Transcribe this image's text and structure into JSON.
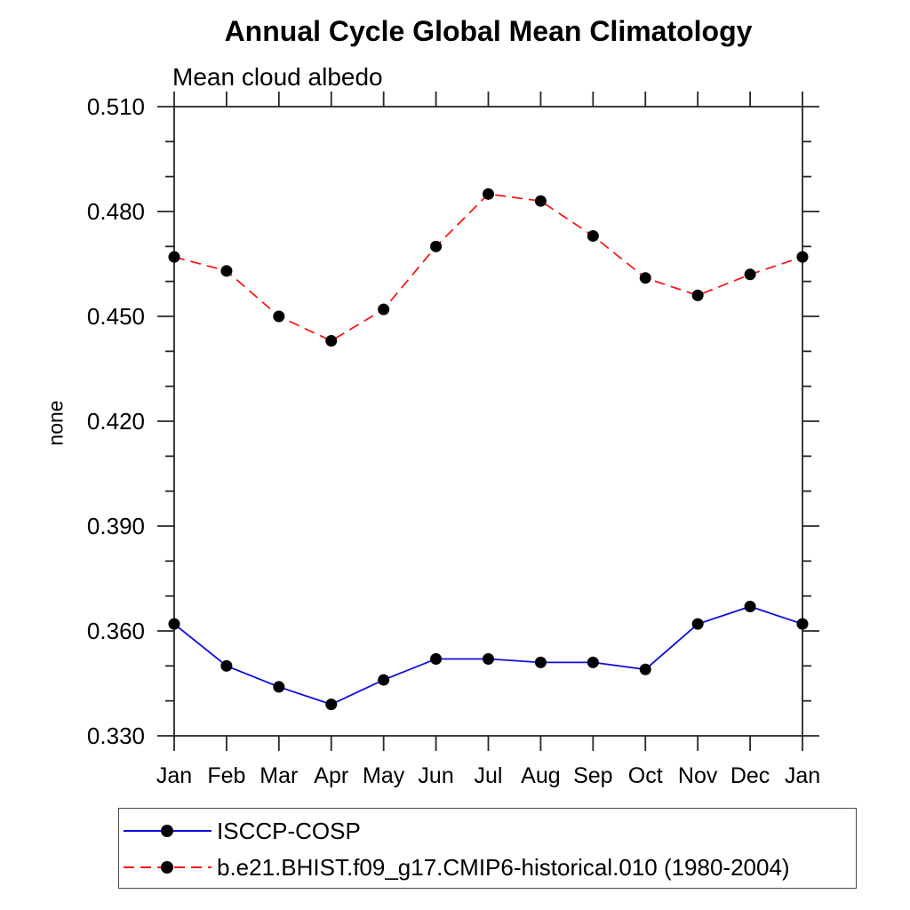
{
  "page": {
    "background": "#ffffff"
  },
  "chart_data": {
    "type": "line",
    "title": "Annual Cycle Global Mean Climatology",
    "subtitle": "Mean cloud albedo",
    "xlabel": "",
    "ylabel": "none",
    "categories": [
      "Jan",
      "Feb",
      "Mar",
      "Apr",
      "May",
      "Jun",
      "Jul",
      "Aug",
      "Sep",
      "Oct",
      "Nov",
      "Dec",
      "Jan"
    ],
    "ylim": [
      0.33,
      0.51
    ],
    "y_major_step": 0.03,
    "y_minor_step": 0.01,
    "y_tick_labels": [
      "0.330",
      "0.360",
      "0.390",
      "0.420",
      "0.450",
      "0.480",
      "0.510"
    ],
    "grid": false,
    "legend_position": "bottom-left-box",
    "series": [
      {
        "name": "ISCCP-COSP",
        "line_style": "solid",
        "line_color": "#0f0fd9",
        "marker": "circle",
        "marker_color": "#000000",
        "values": [
          0.362,
          0.35,
          0.344,
          0.339,
          0.346,
          0.352,
          0.352,
          0.351,
          0.351,
          0.349,
          0.362,
          0.367,
          0.362
        ]
      },
      {
        "name": "b.e21.BHIST.f09_g17.CMIP6-historical.010 (1980-2004)",
        "line_style": "dashed",
        "line_color": "#f51a1a",
        "marker": "circle",
        "marker_color": "#000000",
        "values": [
          0.467,
          0.463,
          0.45,
          0.443,
          0.452,
          0.47,
          0.485,
          0.483,
          0.473,
          0.461,
          0.456,
          0.462,
          0.467
        ]
      }
    ]
  }
}
